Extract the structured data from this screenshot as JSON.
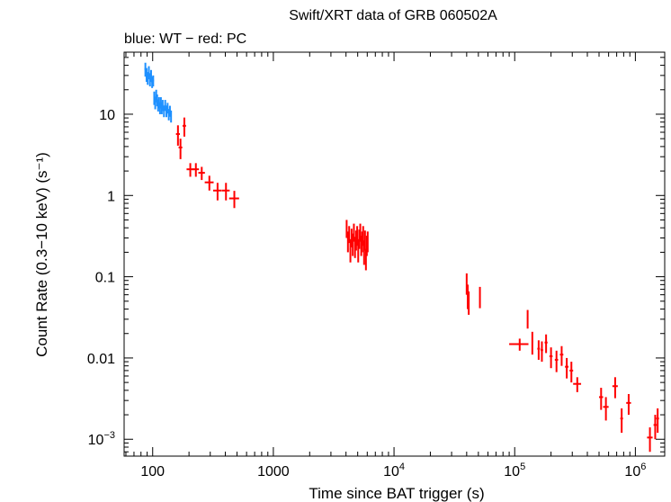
{
  "chart_data": {
    "type": "scatter",
    "title": "Swift/XRT data of GRB 060502A",
    "subtitle": "blue: WT − red: PC",
    "xlabel": "Time since BAT trigger (s)",
    "ylabel": "Count Rate (0.3−10 keV) (s⁻¹)",
    "xscale": "log",
    "yscale": "log",
    "xlim": [
      58,
      1750000
    ],
    "ylim": [
      0.00062,
      58
    ],
    "x_ticks": [
      {
        "value": 100,
        "base": "100",
        "exp": ""
      },
      {
        "value": 1000,
        "base": "1000",
        "exp": ""
      },
      {
        "value": 10000,
        "base": "10",
        "exp": "4"
      },
      {
        "value": 100000,
        "base": "10",
        "exp": "5"
      },
      {
        "value": 1000000,
        "base": "10",
        "exp": "6"
      }
    ],
    "y_ticks": [
      {
        "value": 10,
        "base": "10",
        "exp": ""
      },
      {
        "value": 1,
        "base": "1",
        "exp": ""
      },
      {
        "value": 0.1,
        "base": "0.1",
        "exp": ""
      },
      {
        "value": 0.01,
        "base": "0.01",
        "exp": ""
      },
      {
        "value": 0.001,
        "base": "10",
        "exp": "−3"
      }
    ],
    "series": [
      {
        "name": "WT",
        "color": "#1e90ff",
        "points": [
          [
            87,
            36,
            1.5,
            7
          ],
          [
            89,
            31,
            1.5,
            6
          ],
          [
            91,
            28,
            1.5,
            5
          ],
          [
            93,
            33,
            1.5,
            6
          ],
          [
            95,
            27,
            1.5,
            5
          ],
          [
            97,
            30,
            1.5,
            5
          ],
          [
            99,
            25,
            1.5,
            4
          ],
          [
            101,
            26,
            1.5,
            4
          ],
          [
            103,
            16,
            1.5,
            3
          ],
          [
            105,
            14,
            1.5,
            2.5
          ],
          [
            107,
            17,
            1.5,
            3
          ],
          [
            109,
            15,
            1.5,
            2.5
          ],
          [
            111,
            13,
            1.5,
            2.2
          ],
          [
            113,
            14,
            1.5,
            2.2
          ],
          [
            115,
            12,
            1.5,
            2
          ],
          [
            117,
            14,
            1.5,
            2.2
          ],
          [
            119,
            12,
            1.5,
            2
          ],
          [
            121,
            13,
            1.5,
            2
          ],
          [
            124,
            11,
            2,
            1.8
          ],
          [
            127,
            13,
            2,
            2
          ],
          [
            130,
            11,
            2,
            1.8
          ],
          [
            133,
            12,
            2,
            1.8
          ],
          [
            136,
            10,
            2,
            1.6
          ],
          [
            139,
            11,
            2,
            1.7
          ],
          [
            142,
            9.5,
            2,
            1.6
          ]
        ]
      },
      {
        "name": "PC",
        "color": "#ff0000",
        "points": [
          [
            162,
            5.7,
            6,
            1.6
          ],
          [
            170,
            3.9,
            6,
            1.1
          ],
          [
            183,
            7.2,
            6,
            1.9
          ],
          [
            205,
            2.1,
            14,
            0.4
          ],
          [
            228,
            2.1,
            14,
            0.4
          ],
          [
            255,
            1.9,
            16,
            0.35
          ],
          [
            295,
            1.45,
            25,
            0.3
          ],
          [
            345,
            1.15,
            28,
            0.28
          ],
          [
            405,
            1.15,
            30,
            0.28
          ],
          [
            475,
            0.92,
            45,
            0.22
          ],
          [
            4050,
            0.4,
            60,
            0.1
          ],
          [
            4150,
            0.28,
            60,
            0.08
          ],
          [
            4250,
            0.34,
            60,
            0.08
          ],
          [
            4350,
            0.22,
            60,
            0.07
          ],
          [
            4450,
            0.31,
            60,
            0.08
          ],
          [
            4550,
            0.26,
            60,
            0.08
          ],
          [
            4650,
            0.36,
            60,
            0.09
          ],
          [
            4750,
            0.24,
            60,
            0.07
          ],
          [
            4850,
            0.29,
            60,
            0.08
          ],
          [
            4950,
            0.33,
            60,
            0.09
          ],
          [
            5050,
            0.22,
            60,
            0.07
          ],
          [
            5150,
            0.3,
            60,
            0.08
          ],
          [
            5250,
            0.36,
            60,
            0.09
          ],
          [
            5350,
            0.25,
            60,
            0.07
          ],
          [
            5450,
            0.28,
            60,
            0.08
          ],
          [
            5550,
            0.33,
            60,
            0.09
          ],
          [
            5650,
            0.21,
            60,
            0.07
          ],
          [
            5750,
            0.29,
            60,
            0.08
          ],
          [
            5850,
            0.17,
            60,
            0.05
          ],
          [
            5950,
            0.25,
            60,
            0.07
          ],
          [
            6050,
            0.28,
            60,
            0.08
          ],
          [
            40000,
            0.085,
            300,
            0.025
          ],
          [
            40800,
            0.06,
            300,
            0.02
          ],
          [
            41600,
            0.05,
            300,
            0.016
          ],
          [
            51500,
            0.058,
            400,
            0.017
          ],
          [
            110000,
            0.0148,
            20000,
            0.0025
          ],
          [
            128000,
            0.031,
            1500,
            0.008
          ],
          [
            140000,
            0.016,
            2000,
            0.005
          ],
          [
            158000,
            0.013,
            4000,
            0.0035
          ],
          [
            168000,
            0.0125,
            4000,
            0.0035
          ],
          [
            182000,
            0.0155,
            5000,
            0.004
          ],
          [
            200000,
            0.0105,
            6000,
            0.003
          ],
          [
            222000,
            0.0095,
            7000,
            0.0028
          ],
          [
            245000,
            0.011,
            8000,
            0.003
          ],
          [
            270000,
            0.0078,
            9000,
            0.0022
          ],
          [
            295000,
            0.007,
            10000,
            0.002
          ],
          [
            330000,
            0.0048,
            25000,
            0.001
          ],
          [
            520000,
            0.0033,
            20000,
            0.001
          ],
          [
            570000,
            0.0025,
            30000,
            0.0008
          ],
          [
            680000,
            0.0045,
            35000,
            0.0013
          ],
          [
            770000,
            0.0018,
            20000,
            0.0006
          ],
          [
            880000,
            0.0028,
            40000,
            0.0008
          ],
          [
            1320000,
            0.00105,
            70000,
            0.00035
          ],
          [
            1460000,
            0.0015,
            45000,
            0.0005
          ],
          [
            1530000,
            0.0018,
            40000,
            0.0006
          ]
        ]
      }
    ]
  }
}
